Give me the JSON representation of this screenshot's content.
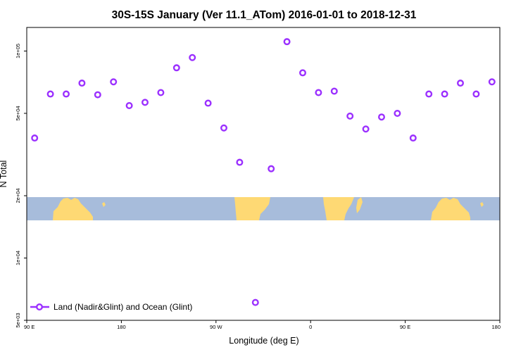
{
  "chart_data": {
    "type": "scatter",
    "title": "30S-15S January (Ver 11.1_ATom)   2016-01-01 to 2018-12-31",
    "xlabel": "Longitude (deg E)",
    "ylabel": "N Total",
    "x_ticks": [
      {
        "value": 90,
        "label": "90 E"
      },
      {
        "value": 180,
        "label": "180"
      },
      {
        "value": 270,
        "label": "90 W"
      },
      {
        "value": 360,
        "label": "0"
      },
      {
        "value": 450,
        "label": "90 E"
      },
      {
        "value": 540,
        "label": "180"
      }
    ],
    "y_ticks": [
      {
        "value": 5000,
        "label": "5e+03"
      },
      {
        "value": 10000,
        "label": "1e+04"
      },
      {
        "value": 20000,
        "label": "2e+04"
      },
      {
        "value": 50000,
        "label": "5e+04"
      },
      {
        "value": 100000,
        "label": "1e+05"
      }
    ],
    "xlim": [
      90,
      540
    ],
    "ylim": [
      5000,
      130000
    ],
    "y_scale": "log",
    "marker_color": "#9b30ff",
    "legend": {
      "label": "Land (Nadir&Glint) and Ocean (Glint)",
      "position": "bottom-left"
    },
    "series": [
      {
        "name": "Land (Nadir&Glint) and Ocean (Glint)",
        "points": [
          {
            "x": 97.5,
            "y": 38000
          },
          {
            "x": 112.5,
            "y": 62000
          },
          {
            "x": 127.5,
            "y": 62000
          },
          {
            "x": 142.5,
            "y": 70000
          },
          {
            "x": 157.5,
            "y": 61500
          },
          {
            "x": 172.5,
            "y": 71000
          },
          {
            "x": 187.5,
            "y": 54500
          },
          {
            "x": 202.5,
            "y": 56500
          },
          {
            "x": 217.5,
            "y": 63000
          },
          {
            "x": 232.5,
            "y": 83000
          },
          {
            "x": 247.5,
            "y": 93000
          },
          {
            "x": 262.5,
            "y": 56000
          },
          {
            "x": 277.5,
            "y": 42500
          },
          {
            "x": 292.5,
            "y": 29000
          },
          {
            "x": 307.5,
            "y": 6100
          },
          {
            "x": 322.5,
            "y": 27000
          },
          {
            "x": 337.5,
            "y": 111000
          },
          {
            "x": 352.5,
            "y": 78500
          },
          {
            "x": 367.5,
            "y": 63000
          },
          {
            "x": 382.5,
            "y": 64000
          },
          {
            "x": 397.5,
            "y": 48500
          },
          {
            "x": 412.5,
            "y": 42000
          },
          {
            "x": 427.5,
            "y": 48000
          },
          {
            "x": 442.5,
            "y": 50000
          },
          {
            "x": 457.5,
            "y": 38000
          },
          {
            "x": 472.5,
            "y": 62000
          },
          {
            "x": 487.5,
            "y": 62000
          },
          {
            "x": 502.5,
            "y": 70000
          },
          {
            "x": 517.5,
            "y": 62000
          },
          {
            "x": 532.5,
            "y": 71000
          }
        ]
      }
    ],
    "map_strip": {
      "ocean_color": "#a7bcdb",
      "land_color": "#fed974"
    }
  }
}
